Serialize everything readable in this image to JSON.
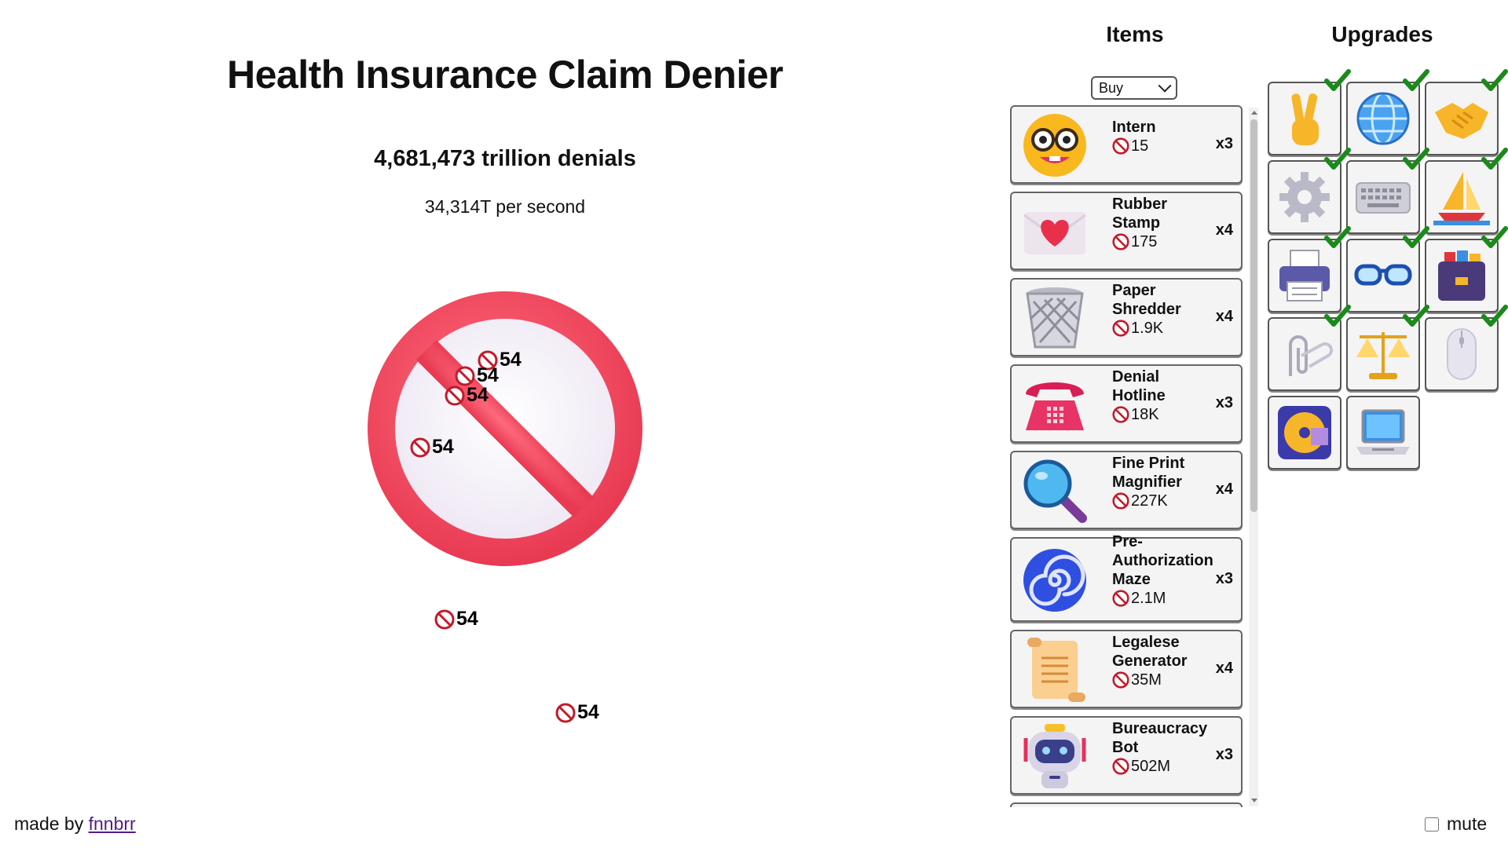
{
  "game": {
    "title": "Health Insurance Claim Denier",
    "denials": "4,681,473 trillion denials",
    "per_second": "34,314T per second",
    "click_button_icon": "prohibited-icon"
  },
  "floating_numbers": [
    "54",
    "54",
    "54",
    "54",
    "54",
    "54"
  ],
  "footer": {
    "made_by": "made by",
    "author": "fnnbrr",
    "mute_label": "mute",
    "mute_checked": false
  },
  "items_panel": {
    "heading": "Items",
    "mode_select": "Buy",
    "items": [
      {
        "name": "Intern",
        "cost": "15",
        "count": "x3",
        "icon": "nerd-face-icon"
      },
      {
        "name": "Rubber Stamp",
        "cost": "175",
        "count": "x4",
        "icon": "love-letter-icon"
      },
      {
        "name": "Paper Shredder",
        "cost": "1.9K",
        "count": "x4",
        "icon": "wastebasket-icon"
      },
      {
        "name": "Denial Hotline",
        "cost": "18K",
        "count": "x3",
        "icon": "telephone-icon"
      },
      {
        "name": "Fine Print Magnifier",
        "cost": "227K",
        "count": "x4",
        "icon": "magnifying-glass-icon"
      },
      {
        "name": "Pre-Authorization Maze",
        "cost": "2.1M",
        "count": "x3",
        "icon": "spiral-icon"
      },
      {
        "name": "Legalese Generator",
        "cost": "35M",
        "count": "x4",
        "icon": "scroll-icon"
      },
      {
        "name": "Bureaucracy Bot",
        "cost": "502M",
        "count": "x3",
        "icon": "robot-icon"
      }
    ]
  },
  "upgrades_panel": {
    "heading": "Upgrades",
    "upgrades": [
      {
        "icon": "victory-hand-icon",
        "purchased": true
      },
      {
        "icon": "globe-icon",
        "purchased": true
      },
      {
        "icon": "handshake-icon",
        "purchased": true
      },
      {
        "icon": "gear-icon",
        "purchased": true
      },
      {
        "icon": "keyboard-icon",
        "purchased": true
      },
      {
        "icon": "sailboat-icon",
        "purchased": true
      },
      {
        "icon": "printer-icon",
        "purchased": true
      },
      {
        "icon": "glasses-icon",
        "purchased": true
      },
      {
        "icon": "card-file-box-icon",
        "purchased": true
      },
      {
        "icon": "paperclips-icon",
        "purchased": true
      },
      {
        "icon": "balance-scale-icon",
        "purchased": true
      },
      {
        "icon": "computer-mouse-icon",
        "purchased": true
      },
      {
        "icon": "optical-disk-icon",
        "purchased": false
      },
      {
        "icon": "laptop-icon",
        "purchased": false
      }
    ]
  },
  "colors": {
    "prohibited_red": "#f2445d",
    "check_green": "#1a8a1a",
    "link_purple": "#551a8b"
  }
}
